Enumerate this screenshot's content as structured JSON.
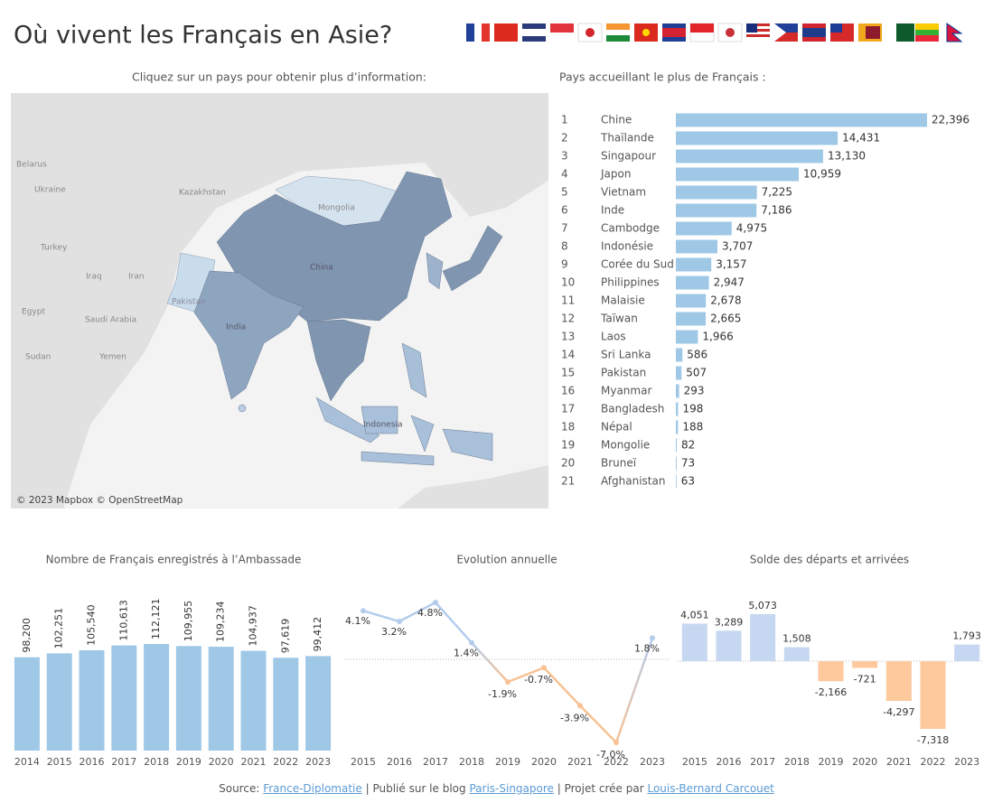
{
  "title": "Où vivent les Français en Asie?",
  "map": {
    "title": "Cliquez sur un pays pour obtenir plus d’information:",
    "attribution": "© 2023 Mapbox © OpenStreetMap",
    "labels": [
      "Belarus",
      "Ukraine",
      "Kazakhstan",
      "Mongolia",
      "Turkey",
      "Iraq",
      "Iran",
      "China",
      "Egypt",
      "Saudi Arabia",
      "Yemen",
      "Sudan",
      "Pakistan",
      "India",
      "Indonesia"
    ]
  },
  "chart_data": [
    {
      "type": "hbar",
      "title": "Pays accueillant le plus de Français :",
      "ranks": [
        1,
        2,
        3,
        4,
        5,
        6,
        7,
        8,
        9,
        10,
        11,
        12,
        13,
        14,
        15,
        16,
        17,
        18,
        19,
        20,
        21
      ],
      "categories": [
        "Chine",
        "Thaïlande",
        "Singapour",
        "Japon",
        "Vietnam",
        "Inde",
        "Cambodge",
        "Indonésie",
        "Corée du Sud",
        "Philippines",
        "Malaisie",
        "Taïwan",
        "Laos",
        "Sri Lanka",
        "Pakistan",
        "Myanmar",
        "Bangladesh",
        "Népal",
        "Mongolie",
        "Bruneï",
        "Afghanistan"
      ],
      "values": [
        22396,
        14431,
        13130,
        10959,
        7225,
        7186,
        4975,
        3707,
        3157,
        2947,
        2678,
        2665,
        1966,
        586,
        507,
        293,
        198,
        188,
        82,
        73,
        63
      ],
      "value_labels": [
        "22,396",
        "14,431",
        "13,130",
        "10,959",
        "7,225",
        "7,186",
        "4,975",
        "3,707",
        "3,157",
        "2,947",
        "2,678",
        "2,665",
        "1,966",
        "586",
        "507",
        "293",
        "198",
        "188",
        "82",
        "73",
        "63"
      ],
      "color": "#9fc8e7"
    },
    {
      "type": "bar",
      "title": "Nombre de Français enregistrés à l’Ambassade",
      "categories": [
        "2014",
        "2015",
        "2016",
        "2017",
        "2018",
        "2019",
        "2020",
        "2021",
        "2022",
        "2023"
      ],
      "values": [
        98200,
        102251,
        105540,
        110613,
        112121,
        109955,
        109234,
        104937,
        97619,
        99412
      ],
      "value_labels": [
        "98,200",
        "102,251",
        "105,540",
        "110,613",
        "112,121",
        "109,955",
        "109,234",
        "104,937",
        "97,619",
        "99,412"
      ],
      "color": "#9fc8e7"
    },
    {
      "type": "line",
      "title": "Evolution annuelle",
      "categories": [
        "2015",
        "2016",
        "2017",
        "2018",
        "2019",
        "2020",
        "2021",
        "2022",
        "2023"
      ],
      "values": [
        4.1,
        3.2,
        4.8,
        1.4,
        -1.9,
        -0.7,
        -3.9,
        -7.0,
        1.8
      ],
      "value_labels": [
        "4.1%",
        "3.2%",
        "4.8%",
        "1.4%",
        "-1.9%",
        "-0.7%",
        "-3.9%",
        "-7.0%",
        "1.8%"
      ],
      "positive_color": "#b4cdec",
      "negative_color": "#f8c293"
    },
    {
      "type": "bar",
      "title": "Solde des départs et arrivées",
      "categories": [
        "2015",
        "2016",
        "2017",
        "2018",
        "2019",
        "2020",
        "2021",
        "2022",
        "2023"
      ],
      "values": [
        4051,
        3289,
        5073,
        1508,
        -2166,
        -721,
        -4297,
        -7318,
        1793
      ],
      "value_labels": [
        "4,051",
        "3,289",
        "5,073",
        "1,508",
        "-2,166",
        "-721",
        "-4,297",
        "-7,318",
        "1,793"
      ],
      "positive_color": "#c6d8f1",
      "negative_color": "#fdc99d"
    }
  ],
  "source": [
    "Source:",
    "France-Diplomatie",
    "| Publié sur le blog",
    "Paris-Singapore",
    "| Projet crée par",
    "Louis-Bernard Carcouet"
  ]
}
